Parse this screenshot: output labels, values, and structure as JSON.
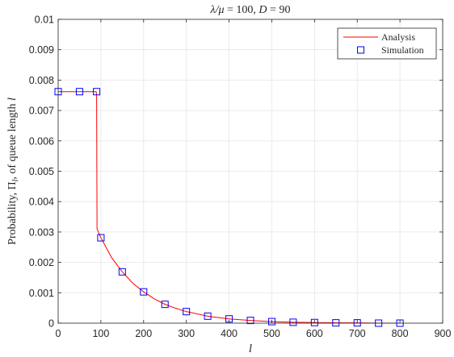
{
  "chart_data": {
    "type": "line",
    "title_parts": [
      "λ/μ",
      " = 100, ",
      "D",
      " = 90"
    ],
    "xlabel": "l",
    "ylabel_parts": [
      "Probability, Π",
      "l",
      ", of queue length ",
      "l"
    ],
    "xlim": [
      0,
      900
    ],
    "ylim": [
      0,
      0.01
    ],
    "xticks": [
      0,
      100,
      200,
      300,
      400,
      500,
      600,
      700,
      800,
      900
    ],
    "yticks": [
      0,
      0.001,
      0.002,
      0.003,
      0.004,
      0.005,
      0.006,
      0.007,
      0.008,
      0.009,
      0.01
    ],
    "xtick_labels": [
      "0",
      "100",
      "200",
      "300",
      "400",
      "500",
      "600",
      "700",
      "800",
      "900"
    ],
    "ytick_labels": [
      "0",
      "0.001",
      "0.002",
      "0.003",
      "0.004",
      "0.005",
      "0.006",
      "0.007",
      "0.008",
      "0.009",
      "0.01"
    ],
    "grid": true,
    "legend_position": "top-right",
    "series": [
      {
        "name": "Analysis",
        "style": "line",
        "color": "#ff0000",
        "x": [
          0,
          89,
          90,
          91,
          100,
          125,
          150,
          175,
          200,
          225,
          250,
          275,
          300,
          350,
          400,
          450,
          500,
          550,
          600,
          650,
          700,
          750,
          800
        ],
        "y": [
          0.00762,
          0.00762,
          0.0075,
          0.0031,
          0.00281,
          0.00216,
          0.00169,
          0.00131,
          0.00103,
          0.0008,
          0.00062,
          0.00049,
          0.00038,
          0.00023,
          0.00014,
          9e-05,
          5e-05,
          3e-05,
          2e-05,
          1e-05,
          1e-05,
          0.0,
          0.0
        ]
      },
      {
        "name": "Simulation",
        "style": "marker-square",
        "color": "#0000ff",
        "x": [
          0,
          50,
          90,
          100,
          150,
          200,
          250,
          300,
          350,
          400,
          450,
          500,
          550,
          600,
          650,
          700,
          750,
          800
        ],
        "y": [
          0.00762,
          0.00762,
          0.00762,
          0.00281,
          0.00169,
          0.00103,
          0.00062,
          0.00038,
          0.00023,
          0.00014,
          9e-05,
          5e-05,
          3e-05,
          2e-05,
          1e-05,
          1e-05,
          0.0,
          0.0
        ]
      }
    ]
  }
}
